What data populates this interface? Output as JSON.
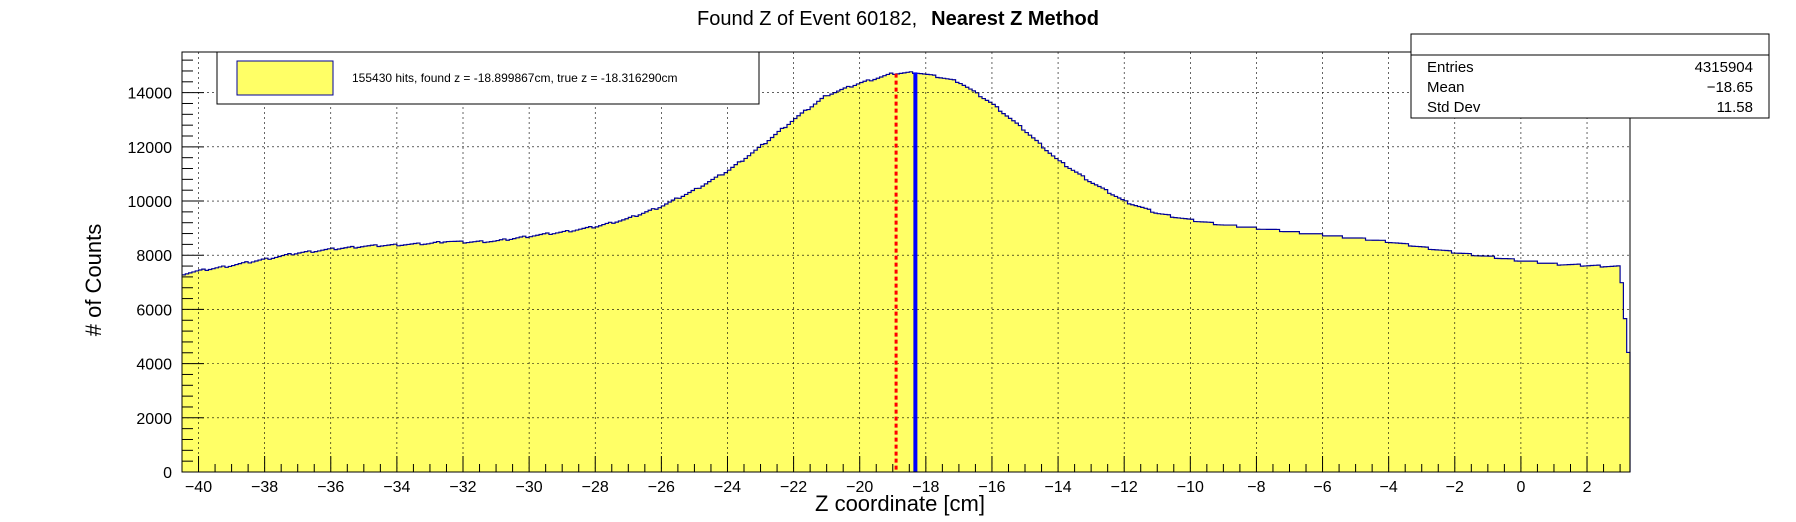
{
  "chart_data": {
    "type": "histogram",
    "title": "Found Z of Event 60182,",
    "title_method": "Nearest Z Method",
    "xlabel": "Z coordinate [cm]",
    "ylabel": "# of Counts",
    "xlim": [
      -40.5,
      3.3
    ],
    "ylim": [
      0,
      15500
    ],
    "x_ticks": [
      -40,
      -38,
      -36,
      -34,
      -32,
      -30,
      -28,
      -26,
      -24,
      -22,
      -20,
      -18,
      -16,
      -14,
      -12,
      -10,
      -8,
      -6,
      -4,
      -2,
      0,
      2
    ],
    "y_ticks": [
      0,
      2000,
      4000,
      6000,
      8000,
      10000,
      12000,
      14000
    ],
    "grid": true,
    "fill_color": "#ffff66",
    "line_color": "#000099",
    "profile": {
      "x": [
        -40.5,
        -40.0,
        -39.0,
        -38.0,
        -37.0,
        -36.0,
        -35.0,
        -34.0,
        -33.0,
        -32.5,
        -32.0,
        -31.0,
        -30.0,
        -29.0,
        -28.0,
        -27.0,
        -26.0,
        -25.0,
        -24.0,
        -23.0,
        -22.0,
        -21.0,
        -20.0,
        -19.0,
        -18.3,
        -17.5,
        -17.0,
        -16.0,
        -15.0,
        -14.0,
        -13.0,
        -12.0,
        -11.0,
        -10.0,
        -9.0,
        -8.0,
        -7.0,
        -6.0,
        -5.0,
        -4.0,
        -3.0,
        -2.0,
        -1.0,
        0.0,
        1.0,
        2.0,
        3.0,
        3.3
      ],
      "y": [
        7300,
        7420,
        7620,
        7850,
        8080,
        8220,
        8330,
        8380,
        8430,
        8520,
        8480,
        8520,
        8700,
        8850,
        9050,
        9350,
        9800,
        10400,
        11100,
        12000,
        13000,
        13900,
        14350,
        14700,
        14750,
        14550,
        14400,
        13600,
        12600,
        11500,
        10700,
        10000,
        9550,
        9300,
        9120,
        9000,
        8870,
        8750,
        8630,
        8500,
        8300,
        8100,
        7950,
        7800,
        7680,
        7620,
        7580,
        3800
      ]
    },
    "found_z": -18.899867,
    "true_z": -18.31629,
    "found_color": "#ff0000",
    "true_color": "#0000ff",
    "legend": {
      "label": "155430 hits, found z = -18.899867cm, true z = -18.316290cm",
      "position": "top-left"
    },
    "stats": {
      "position": "top-right",
      "rows": [
        {
          "label": "Entries",
          "value": "4315904"
        },
        {
          "label": "Mean",
          "value": "−18.65"
        },
        {
          "label": "Std Dev",
          "value": "11.58"
        }
      ]
    }
  }
}
